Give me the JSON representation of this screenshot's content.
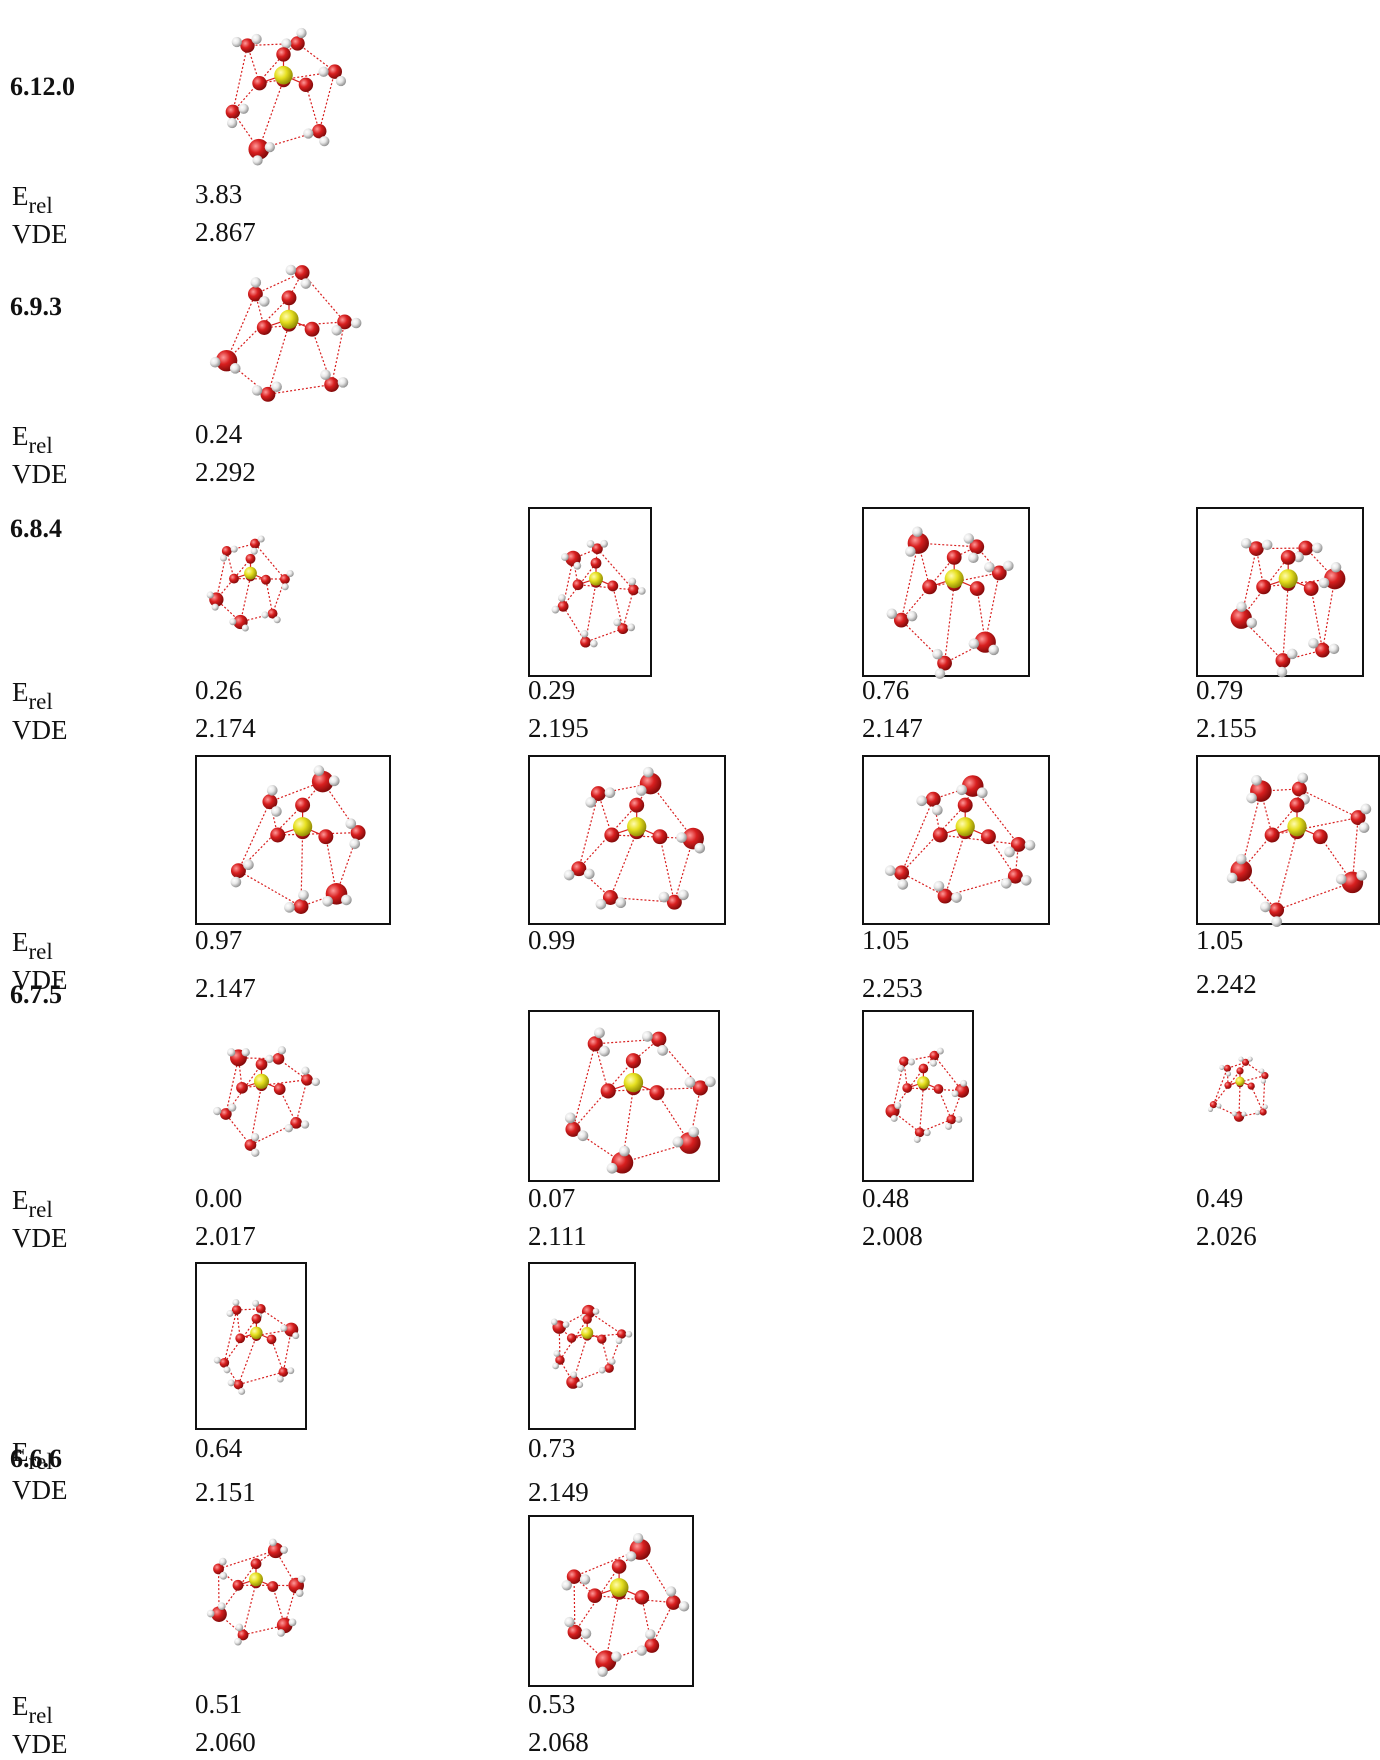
{
  "labels": {
    "erel_main": "E",
    "erel_sub": "rel",
    "vde": "VDE"
  },
  "groups": [
    "6.12.0",
    "6.9.3",
    "6.8.4",
    "6.7.5",
    "6.6.6"
  ],
  "entries": [
    {
      "erel": "3.83",
      "vde": "2.867"
    },
    {
      "erel": "0.24",
      "vde": "2.292"
    },
    {
      "erel": "0.26",
      "vde": "2.174"
    },
    {
      "erel": "0.29",
      "vde": "2.195"
    },
    {
      "erel": "0.76",
      "vde": "2.147"
    },
    {
      "erel": "0.79",
      "vde": "2.155"
    },
    {
      "erel": "0.97",
      "vde": "2.147"
    },
    {
      "erel": "0.99",
      "vde": ""
    },
    {
      "erel": "1.05",
      "vde": "2.253"
    },
    {
      "erel": "1.05",
      "vde": "2.242"
    },
    {
      "erel": "0.00",
      "vde": "2.017"
    },
    {
      "erel": "0.07",
      "vde": "2.111"
    },
    {
      "erel": "0.48",
      "vde": "2.008"
    },
    {
      "erel": "0.49",
      "vde": "2.026"
    },
    {
      "erel": "0.64",
      "vde": "2.151"
    },
    {
      "erel": "0.73",
      "vde": "2.149"
    },
    {
      "erel": "0.51",
      "vde": "2.060"
    },
    {
      "erel": "0.53",
      "vde": "2.068"
    }
  ],
  "colors": {
    "oxygen": "#d81f1f",
    "hydrogen": "#e8e8e8",
    "sulfur": "#e6e020",
    "hbond": "#d81f1f"
  }
}
